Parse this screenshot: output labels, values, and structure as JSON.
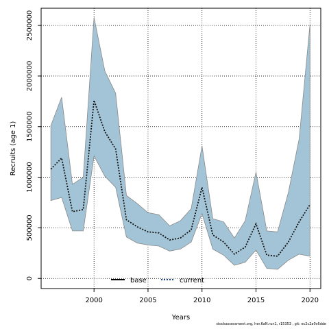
{
  "chart_data": {
    "type": "area",
    "xlabel": "Years",
    "ylabel": "Recruits (age 1)",
    "xlim": [
      1995.1,
      2021
    ],
    "ylim": [
      -100000,
      2670000
    ],
    "x_ticks": [
      2000,
      2005,
      2010,
      2015,
      2020
    ],
    "y_ticks": [
      0,
      500000,
      1000000,
      1500000,
      2000000,
      2500000
    ],
    "grid": true,
    "legend": {
      "placement": "bottom-center",
      "entries": [
        {
          "label": "base",
          "color": "#000000",
          "style": "solid"
        },
        {
          "label": "current",
          "color": "#1a3a8a",
          "style": "dotted"
        }
      ]
    },
    "band_color": "#a3c4d6",
    "band_edge_color": "#888888",
    "x": [
      1996,
      1997,
      1998,
      1999,
      2000,
      2001,
      2002,
      2003,
      2004,
      2005,
      2006,
      2007,
      2008,
      2009,
      2010,
      2011,
      2012,
      2013,
      2014,
      2015,
      2016,
      2017,
      2018,
      2019,
      2020
    ],
    "series": [
      {
        "name": "current",
        "values": [
          1080000,
          1190000,
          660000,
          680000,
          1760000,
          1450000,
          1280000,
          580000,
          510000,
          460000,
          450000,
          380000,
          400000,
          480000,
          900000,
          430000,
          360000,
          240000,
          310000,
          540000,
          230000,
          220000,
          360000,
          560000,
          730000
        ],
        "lower": [
          770000,
          800000,
          470000,
          470000,
          1210000,
          1010000,
          900000,
          410000,
          350000,
          330000,
          320000,
          270000,
          290000,
          360000,
          640000,
          290000,
          230000,
          130000,
          160000,
          280000,
          100000,
          90000,
          180000,
          240000,
          220000
        ],
        "upper": [
          1510000,
          1790000,
          930000,
          1000000,
          2580000,
          2050000,
          1830000,
          820000,
          740000,
          650000,
          630000,
          520000,
          570000,
          690000,
          1310000,
          590000,
          560000,
          400000,
          570000,
          1050000,
          470000,
          460000,
          850000,
          1380000,
          2510000
        ]
      }
    ]
  },
  "footer_text": "stockassessment.org, her.6aN.run1, r15353 , git: ec2c2a0c6dde"
}
